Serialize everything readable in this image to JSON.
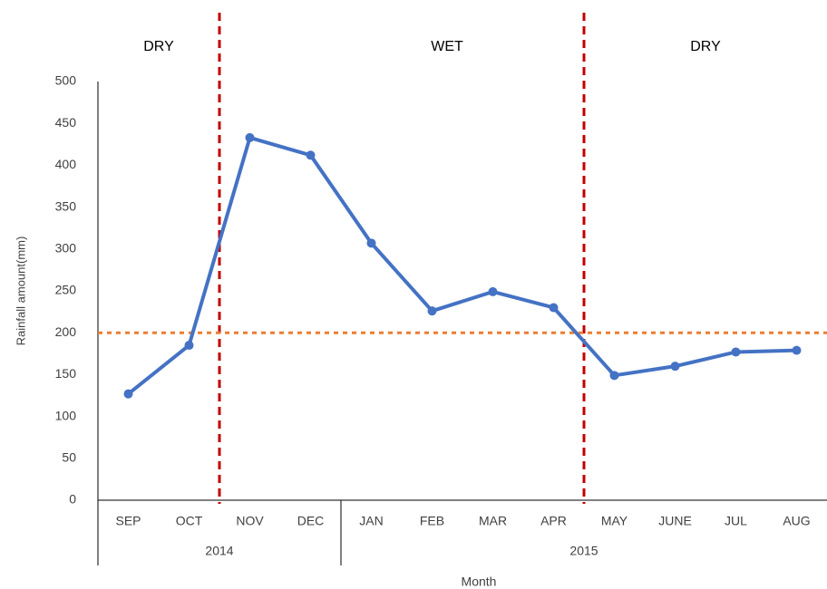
{
  "chart_data": {
    "type": "line",
    "x_label": "Month",
    "y_label": "Rainfall amount(mm)",
    "categories": [
      "SEP",
      "OCT",
      "NOV",
      "DEC",
      "JAN",
      "FEB",
      "MAR",
      "APR",
      "MAY",
      "JUNE",
      "JUL",
      "AUG"
    ],
    "year_groups": [
      {
        "label": "2014",
        "span": 4
      },
      {
        "label": "2015",
        "span": 8
      }
    ],
    "seasons": [
      {
        "label": "DRY",
        "span": 2
      },
      {
        "label": "WET",
        "span": 6
      },
      {
        "label": "DRY",
        "span": 4
      }
    ],
    "series": [
      {
        "name": "Rainfall",
        "color": "#4472c4",
        "values": [
          127,
          185,
          433,
          412,
          307,
          226,
          249,
          230,
          149,
          160,
          177,
          179
        ]
      }
    ],
    "reference_line": {
      "value": 200,
      "color": "#ed7d31"
    },
    "divider_color": "#c00000",
    "ylim": [
      0,
      500
    ],
    "yticks": [
      0,
      50,
      100,
      150,
      200,
      250,
      300,
      350,
      400,
      450,
      500
    ],
    "grid": false
  }
}
